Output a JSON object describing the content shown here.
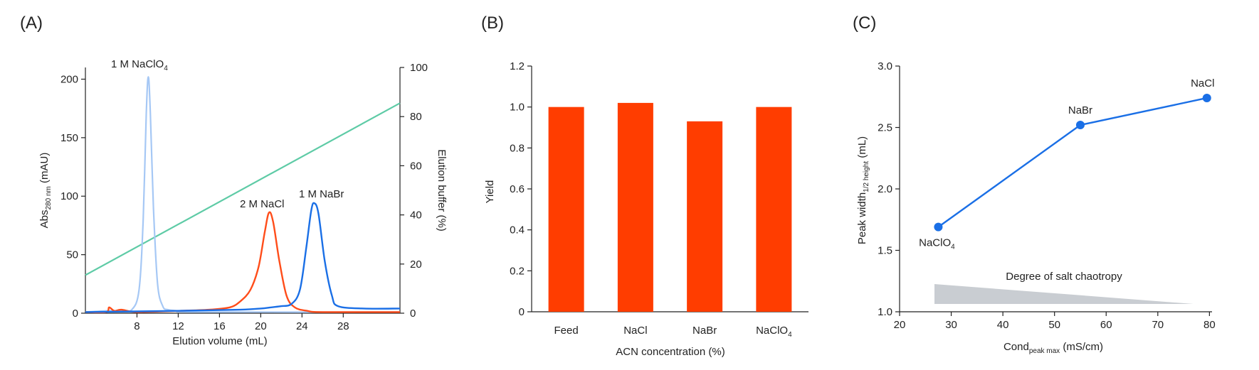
{
  "panels": {
    "a": {
      "label": "(A)"
    },
    "b": {
      "label": "(B)"
    },
    "c": {
      "label": "(C)"
    }
  },
  "chart_data": [
    {
      "type": "line",
      "panel": "(A)",
      "xlabel": "Elution volume (mL)",
      "ylabel_main": "Abs",
      "ylabel_sub": "280 nm",
      "ylabel_tail": " (mAU)",
      "y2label": "Elution buffer (%)",
      "xlim": [
        3,
        33.5
      ],
      "ylim": [
        0,
        210
      ],
      "y2lim": [
        0,
        100
      ],
      "xticks": [
        8,
        12,
        16,
        20,
        24,
        28
      ],
      "yticks": [
        0,
        50,
        100,
        150,
        200
      ],
      "y2ticks": [
        0,
        20,
        40,
        60,
        80,
        100
      ],
      "colors": {
        "nacl": "#ff4d1a",
        "nabr": "#1a6fe6",
        "naclo4": "#a6c8f5",
        "gradient": "#5ecba6"
      },
      "annotations": {
        "naclo4": {
          "main": "1 M NaClO",
          "sub": "4"
        },
        "nacl": {
          "main": "2 M NaCl"
        },
        "nabr": {
          "main": "1 M NaBr"
        }
      },
      "series": [
        {
          "key": "naclo4",
          "x": [
            3,
            5,
            6.5,
            7.5,
            8.2,
            8.6,
            8.9,
            9.1,
            9.3,
            9.6,
            10.0,
            10.5,
            11,
            12,
            14,
            33.5
          ],
          "y": [
            1,
            2,
            2,
            3,
            20,
            80,
            170,
            202,
            170,
            90,
            25,
            6,
            3,
            2,
            1,
            1
          ]
        },
        {
          "key": "nacl",
          "x": [
            3,
            5,
            5.3,
            5.8,
            6.5,
            8,
            12,
            15,
            17,
            18,
            19,
            19.8,
            20.4,
            20.8,
            21.2,
            21.8,
            22.5,
            23.3,
            24.5,
            26,
            33.5
          ],
          "y": [
            1,
            1,
            5,
            2,
            3,
            1,
            2,
            3,
            5,
            10,
            20,
            40,
            70,
            86,
            78,
            45,
            15,
            5,
            2,
            1,
            1
          ]
        },
        {
          "key": "nabr",
          "x": [
            3,
            12,
            18,
            20,
            21,
            22,
            23,
            23.8,
            24.4,
            24.9,
            25.2,
            25.6,
            26.2,
            26.9,
            27.5,
            30,
            33.5
          ],
          "y": [
            1,
            2,
            3,
            4,
            5,
            6,
            8,
            20,
            55,
            88,
            94,
            85,
            45,
            15,
            6,
            4,
            4
          ]
        }
      ],
      "gradient": {
        "x": [
          3,
          33.5
        ],
        "y2": [
          15.5,
          85.5
        ]
      }
    },
    {
      "type": "bar",
      "panel": "(B)",
      "categories": [
        {
          "main": "Feed",
          "sub": ""
        },
        {
          "main": "NaCl",
          "sub": ""
        },
        {
          "main": "NaBr",
          "sub": ""
        },
        {
          "main": "NaClO",
          "sub": "4"
        }
      ],
      "values": [
        1.0,
        1.02,
        0.93,
        1.0
      ],
      "xlabel": "ACN concentration (%)",
      "ylabel": "Yield",
      "ylim": [
        0,
        1.2
      ],
      "yticks": [
        "0",
        "0.2",
        "0.4",
        "0.6",
        "0.8",
        "1.0",
        "1.2"
      ],
      "color": "#ff3d00"
    },
    {
      "type": "line",
      "panel": "(C)",
      "x": [
        27.5,
        55,
        79.5
      ],
      "y": [
        1.69,
        2.52,
        2.74
      ],
      "point_labels": [
        {
          "main": "NaClO",
          "sub": "4"
        },
        {
          "main": "NaBr",
          "sub": ""
        },
        {
          "main": "NaCl",
          "sub": ""
        }
      ],
      "xlabel_main": "Cond",
      "xlabel_sub": "peak max",
      "xlabel_tail": " (mS/cm)",
      "ylabel_main": "Peak width",
      "ylabel_sub": "1/2 height",
      "ylabel_tail": " (mL)",
      "xlim": [
        20,
        80.5
      ],
      "ylim": [
        1.0,
        3.0
      ],
      "xticks": [
        20,
        30,
        40,
        50,
        60,
        70,
        80
      ],
      "yticks": [
        "1.0",
        "1.5",
        "2.0",
        "2.5",
        "3.0"
      ],
      "color": "#1a6fe6",
      "wedge_label": "Degree of salt chaotropy",
      "wedge_color": "#c9cdd2"
    }
  ]
}
